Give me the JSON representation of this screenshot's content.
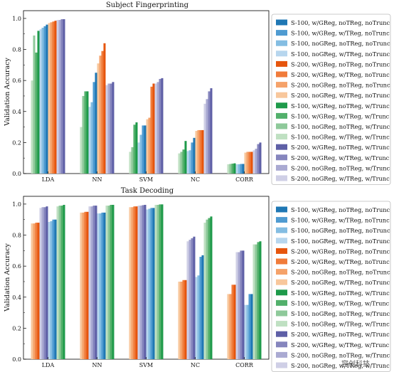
{
  "watermark": "容创科技",
  "legend_entries": [
    {
      "name": "S-100, w/GReg, noTReg, noTrunc",
      "color": "#1f77b4"
    },
    {
      "name": "S-100, w/GReg, w/TReg, noTrunc",
      "color": "#4f9bd1"
    },
    {
      "name": "S-100, noGReg, noTReg, noTrunc",
      "color": "#84bde2"
    },
    {
      "name": "S-100, noGReg, w/TReg, noTrunc",
      "color": "#b7d6ee"
    },
    {
      "name": "S-200, w/GReg, noTReg, noTrunc",
      "color": "#e6550d"
    },
    {
      "name": "S-200, w/GReg, w/TReg, noTrunc",
      "color": "#f07b3a"
    },
    {
      "name": "S-200, noGReg, noTReg, noTrunc",
      "color": "#f5a26a"
    },
    {
      "name": "S-200, noGReg, w/TReg, noTrunc",
      "color": "#f8c79c"
    },
    {
      "name": "S-100, w/GReg, noTReg, w/Trunc",
      "color": "#1e9a4a"
    },
    {
      "name": "S-100, w/GReg, w/TReg, w/Trunc",
      "color": "#52b06b"
    },
    {
      "name": "S-100, noGReg, noTReg, w/Trunc",
      "color": "#8ec99a"
    },
    {
      "name": "S-100, noGReg, w/TReg, w/Trunc",
      "color": "#bfe0c2"
    },
    {
      "name": "S-200, w/GReg, noTReg, w/Trunc",
      "color": "#5e5fa6"
    },
    {
      "name": "S-200, w/GReg, w/TReg, w/Trunc",
      "color": "#8585bd"
    },
    {
      "name": "S-200, noGReg, noTReg, w/Trunc",
      "color": "#aaaad2"
    },
    {
      "name": "S-200, noGReg, w/TReg, w/Trunc",
      "color": "#cfcfe6"
    }
  ],
  "chart_data": [
    {
      "type": "bar",
      "title": "Subject Fingerprinting",
      "xlabel": "",
      "ylabel": "Validation Accuracy",
      "ylim": [
        0,
        1.05
      ],
      "yticks": [
        "0.0",
        "0.2",
        "0.4",
        "0.6",
        "0.8",
        "1.0"
      ],
      "categories": [
        "LDA",
        "NN",
        "SVM",
        "NC",
        "CORR"
      ],
      "legend_position": "right",
      "grid": false,
      "bar_order": [
        11,
        10,
        9,
        8,
        3,
        2,
        1,
        0,
        7,
        6,
        5,
        4,
        15,
        14,
        13,
        12
      ],
      "series": [
        {
          "name": "S-100, w/GReg, noTReg, noTrunc",
          "values": [
            0.96,
            0.65,
            0.31,
            0.23,
            0.062
          ]
        },
        {
          "name": "S-100, w/GReg, w/TReg, noTrunc",
          "values": [
            0.95,
            0.59,
            0.31,
            0.2,
            0.062
          ]
        },
        {
          "name": "S-100, noGReg, noTReg, noTrunc",
          "values": [
            0.94,
            0.46,
            0.25,
            0.15,
            0.06
          ]
        },
        {
          "name": "S-100, noGReg, w/TReg, noTrunc",
          "values": [
            0.93,
            0.43,
            0.2,
            0.145,
            0.06
          ]
        },
        {
          "name": "S-200, w/GReg, noTReg, noTrunc",
          "values": [
            0.985,
            0.84,
            0.58,
            0.28,
            0.14
          ]
        },
        {
          "name": "S-200, w/GReg, w/TReg, noTrunc",
          "values": [
            0.98,
            0.79,
            0.56,
            0.28,
            0.14
          ]
        },
        {
          "name": "S-200, noGReg, noTReg, noTrunc",
          "values": [
            0.975,
            0.76,
            0.36,
            0.28,
            0.14
          ]
        },
        {
          "name": "S-200, noGReg, w/TReg, noTrunc",
          "values": [
            0.97,
            0.71,
            0.35,
            0.275,
            0.135
          ]
        },
        {
          "name": "S-100, w/GReg, noTReg, w/Trunc",
          "values": [
            0.92,
            0.53,
            0.33,
            0.21,
            0.066
          ]
        },
        {
          "name": "S-100, w/GReg, w/TReg, w/Trunc",
          "values": [
            0.78,
            0.53,
            0.315,
            0.155,
            0.064
          ]
        },
        {
          "name": "S-100, noGReg, noTReg, w/Trunc",
          "values": [
            0.89,
            0.5,
            0.17,
            0.14,
            0.062
          ]
        },
        {
          "name": "S-100, noGReg, w/TReg, w/Trunc",
          "values": [
            0.6,
            0.3,
            0.14,
            0.13,
            0.06
          ]
        },
        {
          "name": "S-200, w/GReg, noTReg, w/Trunc",
          "values": [
            0.995,
            0.59,
            0.615,
            0.55,
            0.2
          ]
        },
        {
          "name": "S-200, w/GReg, w/TReg, w/Trunc",
          "values": [
            0.995,
            0.58,
            0.61,
            0.53,
            0.19
          ]
        },
        {
          "name": "S-200, noGReg, noTReg, w/Trunc",
          "values": [
            0.99,
            0.58,
            0.59,
            0.48,
            0.16
          ]
        },
        {
          "name": "S-200, noGReg, w/TReg, w/Trunc",
          "values": [
            0.99,
            0.57,
            0.58,
            0.45,
            0.15
          ]
        }
      ]
    },
    {
      "type": "bar",
      "title": "Task Decoding",
      "xlabel": "",
      "ylabel": "Validation Accuracy",
      "ylim": [
        0,
        1.05
      ],
      "yticks": [
        "0.0",
        "0.2",
        "0.4",
        "0.6",
        "0.8",
        "1.0"
      ],
      "categories": [
        "LDA",
        "NN",
        "SVM",
        "NC",
        "CORR"
      ],
      "legend_position": "right",
      "grid": false,
      "bar_order": [
        7,
        6,
        5,
        4,
        15,
        14,
        13,
        12,
        3,
        2,
        1,
        0,
        11,
        10,
        9,
        8
      ],
      "series": [
        {
          "name": "S-100, w/GReg, noTReg, noTrunc",
          "values": [
            0.9,
            0.945,
            0.975,
            0.67,
            0.42
          ]
        },
        {
          "name": "S-100, w/GReg, w/TReg, noTrunc",
          "values": [
            0.9,
            0.945,
            0.975,
            0.66,
            0.42
          ]
        },
        {
          "name": "S-100, noGReg, noTReg, noTrunc",
          "values": [
            0.89,
            0.94,
            0.97,
            0.54,
            0.35
          ]
        },
        {
          "name": "S-100, noGReg, w/TReg, noTrunc",
          "values": [
            0.885,
            0.94,
            0.965,
            0.53,
            0.35
          ]
        },
        {
          "name": "S-200, w/GReg, noTReg, noTrunc",
          "values": [
            0.88,
            0.95,
            0.985,
            0.51,
            0.48
          ]
        },
        {
          "name": "S-200, w/GReg, w/TReg, noTrunc",
          "values": [
            0.88,
            0.95,
            0.985,
            0.51,
            0.48
          ]
        },
        {
          "name": "S-200, noGReg, noTReg, noTrunc",
          "values": [
            0.875,
            0.945,
            0.98,
            0.5,
            0.42
          ]
        },
        {
          "name": "S-200, noGReg, w/TReg, noTrunc",
          "values": [
            0.875,
            0.945,
            0.98,
            0.5,
            0.42
          ]
        },
        {
          "name": "S-100, w/GReg, noTReg, w/Trunc",
          "values": [
            0.995,
            0.995,
            0.998,
            0.92,
            0.76
          ]
        },
        {
          "name": "S-100, w/GReg, w/TReg, w/Trunc",
          "values": [
            0.99,
            0.995,
            0.998,
            0.91,
            0.755
          ]
        },
        {
          "name": "S-100, noGReg, noTReg, w/Trunc",
          "values": [
            0.99,
            0.99,
            0.995,
            0.9,
            0.74
          ]
        },
        {
          "name": "S-100, noGReg, w/TReg, w/Trunc",
          "values": [
            0.985,
            0.99,
            0.995,
            0.88,
            0.74
          ]
        },
        {
          "name": "S-200, w/GReg, noTReg, w/Trunc",
          "values": [
            0.985,
            0.99,
            0.995,
            0.79,
            0.7
          ]
        },
        {
          "name": "S-200, w/GReg, w/TReg, w/Trunc",
          "values": [
            0.98,
            0.99,
            0.993,
            0.78,
            0.7
          ]
        },
        {
          "name": "S-200, noGReg, noTReg, w/Trunc",
          "values": [
            0.98,
            0.985,
            0.99,
            0.77,
            0.69
          ]
        },
        {
          "name": "S-200, noGReg, w/TReg, w/Trunc",
          "values": [
            0.975,
            0.985,
            0.99,
            0.76,
            0.69
          ]
        }
      ]
    }
  ]
}
